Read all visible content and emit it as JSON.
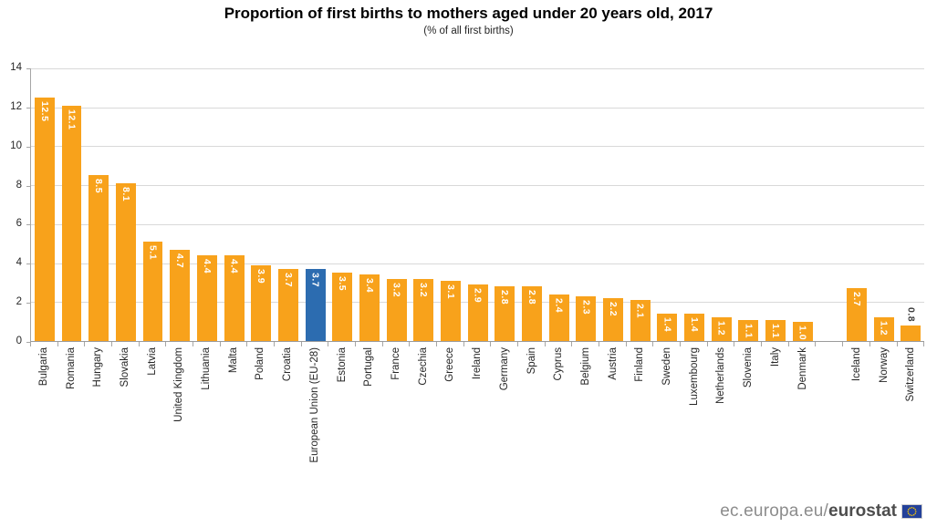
{
  "title": "Proportion of first births to mothers aged under 20 years old, 2017",
  "subtitle": "(% of all first births)",
  "chart_data": {
    "type": "bar",
    "title": "Proportion of first births to mothers aged under 20 years old, 2017",
    "subtitle": "(% of all first births)",
    "xlabel": "",
    "ylabel": "",
    "ylim": [
      0,
      14
    ],
    "y_ticks": [
      0,
      2,
      4,
      6,
      8,
      10,
      12,
      14
    ],
    "grid": "horizontal-light-gray",
    "legend": "none",
    "bar_color": "#F8A21B",
    "eu_bar_color": "#2C6CB0",
    "value_label_color_inside": "#FFFFFF",
    "value_label_color_outside": "#3F3F3F",
    "bars": [
      {
        "label": "Bulgaria",
        "value": 12.5
      },
      {
        "label": "Romania",
        "value": 12.1
      },
      {
        "label": "Hungary",
        "value": 8.5
      },
      {
        "label": "Slovakia",
        "value": 8.1
      },
      {
        "label": "Latvia",
        "value": 5.1
      },
      {
        "label": "United Kingdom",
        "value": 4.7
      },
      {
        "label": "Lithuania",
        "value": 4.4
      },
      {
        "label": "Malta",
        "value": 4.4
      },
      {
        "label": "Poland",
        "value": 3.9
      },
      {
        "label": "Croatia",
        "value": 3.7
      },
      {
        "label": "European Union (EU-28)",
        "value": 3.7,
        "eu": true
      },
      {
        "label": "Estonia",
        "value": 3.5
      },
      {
        "label": "Portugal",
        "value": 3.4
      },
      {
        "label": "France",
        "value": 3.2
      },
      {
        "label": "Czechia",
        "value": 3.2
      },
      {
        "label": "Greece",
        "value": 3.1
      },
      {
        "label": "Ireland",
        "value": 2.9
      },
      {
        "label": "Germany",
        "value": 2.8
      },
      {
        "label": "Spain",
        "value": 2.8
      },
      {
        "label": "Cyprus",
        "value": 2.4
      },
      {
        "label": "Belgium",
        "value": 2.3
      },
      {
        "label": "Austria",
        "value": 2.2
      },
      {
        "label": "Finland",
        "value": 2.1
      },
      {
        "label": "Sweden",
        "value": 1.4
      },
      {
        "label": "Luxembourg",
        "value": 1.4
      },
      {
        "label": "Netherlands",
        "value": 1.2
      },
      {
        "label": "Slovenia",
        "value": 1.1
      },
      {
        "label": "Italy",
        "value": 1.1
      },
      {
        "label": "Denmark",
        "value": 1.0
      },
      {
        "gap": true
      },
      {
        "label": "Iceland",
        "value": 2.7
      },
      {
        "label": "Norway",
        "value": 1.2
      },
      {
        "label": "Switzerland",
        "value": 0.8,
        "label_outside": true
      }
    ]
  },
  "footer": {
    "url_prefix": "ec.europa.eu/",
    "brand": "eurostat",
    "flag_icon": "eu-flag-icon",
    "flag_color": "#24419A",
    "star_color": "#FFCC00"
  }
}
